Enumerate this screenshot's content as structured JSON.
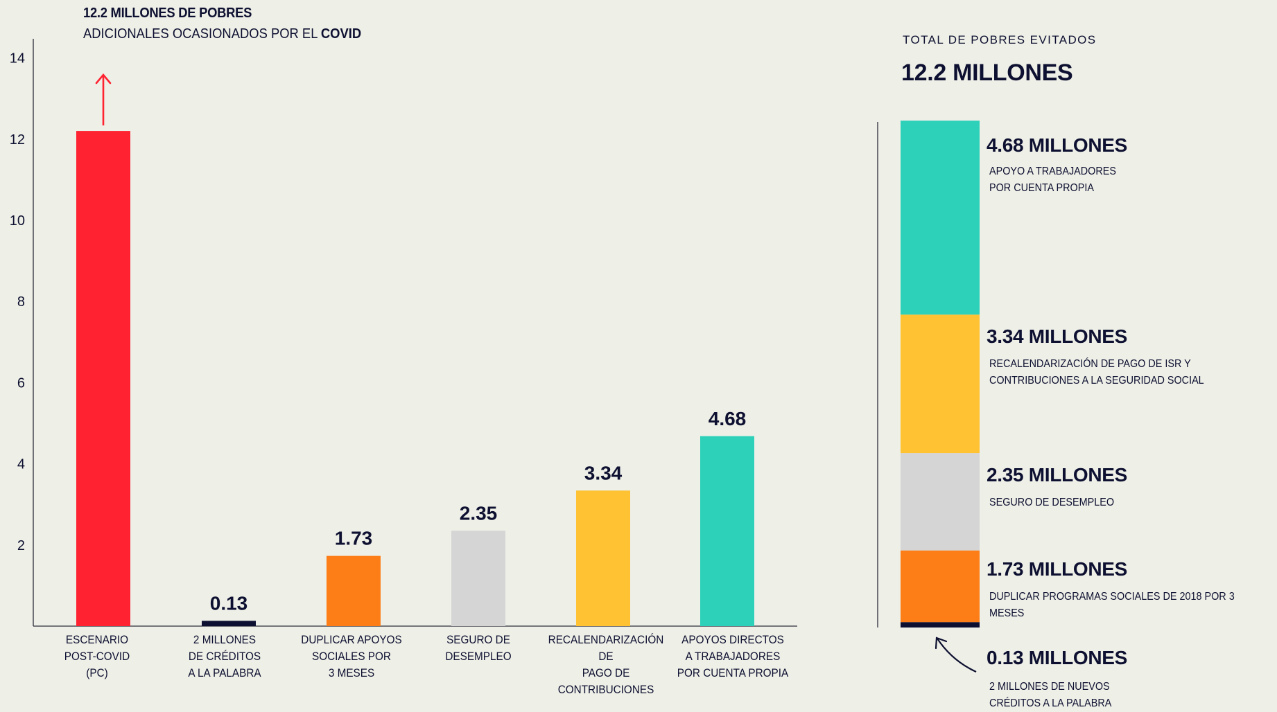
{
  "header": {
    "title": "12.2 MILLONES DE POBRES",
    "subtitle_prefix": "ADICIONALES OCASIONADOS POR EL ",
    "subtitle_bold": "COVID"
  },
  "summary": {
    "label": "TOTAL DE POBRES EVITADOS",
    "total": "12.2 MILLONES"
  },
  "stack_segments": [
    {
      "value_label": "4.68 MILLONES",
      "description": "APOYO A TRABAJADORES\nPOR CUENTA PROPIA"
    },
    {
      "value_label": "3.34 MILLONES",
      "description": "RECALENDARIZACIÓN DE PAGO DE ISR Y\nCONTRIBUCIONES A LA SEGURIDAD SOCIAL"
    },
    {
      "value_label": "2.35 MILLONES",
      "description": "SEGURO DE DESEMPLEO"
    },
    {
      "value_label": "1.73 MILLONES",
      "description": "DUPLICAR PROGRAMAS SOCIALES DE 2018 POR 3 MESES"
    },
    {
      "value_label": "0.13 MILLONES",
      "description": "2 MILLONES DE NUEVOS\nCRÉDITOS A LA PALABRA"
    }
  ],
  "chart_data": [
    {
      "type": "bar",
      "categories": [
        "ESCENARIO\nPOST-COVID\n(PC)",
        "2 MILLONES\nDE CRÉDITOS\nA LA PALABRA",
        "DUPLICAR APOYOS\nSOCIALES POR\n3 MESES",
        "SEGURO DE\nDESEMPLEO",
        "RECALENDARIZACIÓN DE\nPAGO DE\nCONTRIBUCIONES",
        "APOYOS DIRECTOS\nA TRABAJADORES\nPOR CUENTA PROPIA"
      ],
      "values": [
        12.2,
        0.13,
        1.73,
        2.35,
        3.34,
        4.68
      ],
      "data_labels": [
        "",
        "0.13",
        "1.73",
        "2.35",
        "3.34",
        "4.68"
      ],
      "colors": [
        "#ff2332",
        "#0d1030",
        "#fd7d16",
        "#d5d5d5",
        "#ffc233",
        "#2dd0b8"
      ],
      "yticks": [
        "2",
        "4",
        "6",
        "8",
        "10",
        "12",
        "14"
      ],
      "ylim": [
        0,
        14.3
      ],
      "grid": false
    },
    {
      "type": "bar",
      "stacked": true,
      "values": [
        0.13,
        1.73,
        2.35,
        3.34,
        4.68
      ],
      "colors": [
        "#0d1030",
        "#fd7d16",
        "#d5d5d5",
        "#ffc233",
        "#2dd0b8"
      ],
      "total": 12.2
    }
  ]
}
